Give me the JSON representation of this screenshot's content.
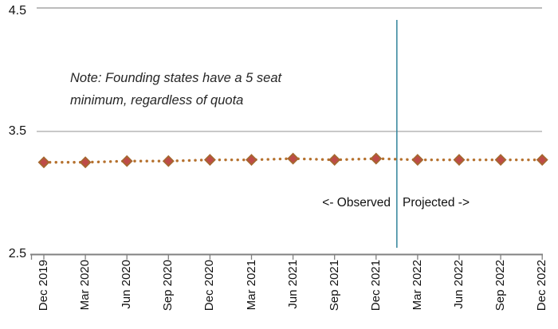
{
  "chart_data": {
    "type": "line",
    "title": "",
    "categories": [
      "Dec 2019",
      "Mar 2020",
      "Jun 2020",
      "Sep 2020",
      "Dec 2020",
      "Mar 2021",
      "Jun 2021",
      "Sep 2021",
      "Dec 2021",
      "Mar 2022",
      "Jun 2022",
      "Sep 2022",
      "Dec 2022"
    ],
    "values": [
      3.25,
      3.25,
      3.26,
      3.26,
      3.27,
      3.27,
      3.28,
      3.27,
      3.28,
      3.27,
      3.27,
      3.27,
      3.27
    ],
    "xlabel": "",
    "ylabel": "",
    "ylim": [
      2.5,
      4.5
    ],
    "ytick_values": [
      4.5,
      3.5,
      2.5
    ],
    "ytick_labels": [
      "4.5",
      "3.5",
      "2.5"
    ],
    "grid": "horizontal",
    "legend": "none",
    "line_style": "dotted",
    "marker": "diamond",
    "divider_between": [
      "Dec 2021",
      "Mar 2022"
    ],
    "colors": {
      "line": "#B5712E",
      "marker_fill": "#BE4B48",
      "marker_border": "#A5672F",
      "divider": "#31849B",
      "gridline": "#A6A6A6",
      "axis": "#808080"
    }
  },
  "annotations": {
    "note_line1": "Note: Founding states have a 5 seat",
    "note_line2": "minimum, regardless of quota",
    "observed_label": "<- Observed",
    "projected_label": "Projected ->"
  }
}
